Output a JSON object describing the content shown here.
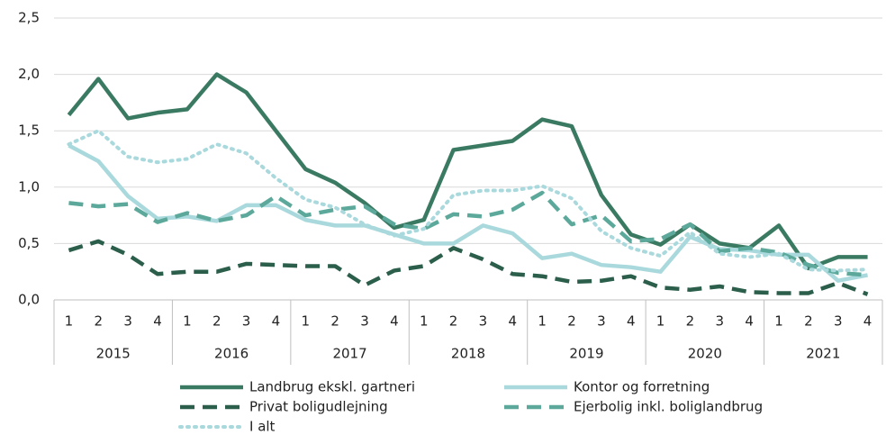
{
  "chart_data": {
    "type": "line",
    "categories": [
      "1",
      "2",
      "3",
      "4",
      "1",
      "2",
      "3",
      "4",
      "1",
      "2",
      "3",
      "4",
      "1",
      "2",
      "3",
      "4",
      "1",
      "2",
      "3",
      "4",
      "1",
      "2",
      "3",
      "4",
      "1",
      "2",
      "3",
      "4"
    ],
    "years": [
      "2015",
      "2016",
      "2017",
      "2018",
      "2019",
      "2020",
      "2021"
    ],
    "ylim": [
      0,
      2.5
    ],
    "yticks": [
      {
        "value": 0,
        "label": "0,0"
      },
      {
        "value": 0.5,
        "label": "0,5"
      },
      {
        "value": 1,
        "label": "1,0"
      },
      {
        "value": 1.5,
        "label": "1,5"
      },
      {
        "value": 2,
        "label": "2,0"
      },
      {
        "value": 2.5,
        "label": "2,5"
      }
    ],
    "grid": true,
    "legend": "bottom",
    "series": [
      {
        "name": "Landbrug ekskl. gartneri",
        "color": "#3b7a62",
        "style": "solid",
        "values": [
          1.64,
          1.96,
          1.61,
          1.66,
          1.69,
          2.0,
          1.84,
          1.5,
          1.16,
          1.04,
          0.86,
          0.64,
          0.71,
          1.33,
          1.37,
          1.41,
          1.6,
          1.54,
          0.93,
          0.58,
          0.49,
          0.67,
          0.5,
          0.46,
          0.66,
          0.28,
          0.38,
          0.38
        ]
      },
      {
        "name": "Kontor og forretning",
        "color": "#a9d9dc",
        "style": "solid",
        "values": [
          1.37,
          1.23,
          0.92,
          0.72,
          0.74,
          0.7,
          0.84,
          0.84,
          0.71,
          0.66,
          0.66,
          0.58,
          0.5,
          0.5,
          0.66,
          0.59,
          0.37,
          0.41,
          0.31,
          0.29,
          0.25,
          0.56,
          0.45,
          0.44,
          0.4,
          0.4,
          0.17,
          0.22
        ]
      },
      {
        "name": "Privat boligudlejning",
        "color": "#2b5e4b",
        "style": "dashed",
        "values": [
          0.44,
          0.52,
          0.4,
          0.23,
          0.25,
          0.25,
          0.32,
          0.31,
          0.3,
          0.3,
          0.13,
          0.26,
          0.3,
          0.46,
          0.36,
          0.23,
          0.21,
          0.16,
          0.17,
          0.21,
          0.11,
          0.09,
          0.12,
          0.07,
          0.06,
          0.06,
          0.15,
          0.05
        ]
      },
      {
        "name": "Ejerbolig inkl. boliglandbrug",
        "color": "#5ca99b",
        "style": "dashed",
        "values": [
          0.86,
          0.83,
          0.85,
          0.69,
          0.77,
          0.7,
          0.75,
          0.92,
          0.75,
          0.8,
          0.83,
          0.67,
          0.63,
          0.76,
          0.74,
          0.8,
          0.95,
          0.67,
          0.75,
          0.52,
          0.54,
          0.67,
          0.43,
          0.46,
          0.42,
          0.31,
          0.24,
          0.22
        ]
      },
      {
        "name": "I alt",
        "color": "#a9d9dc",
        "style": "dotted",
        "values": [
          1.38,
          1.5,
          1.27,
          1.22,
          1.25,
          1.38,
          1.3,
          1.08,
          0.89,
          0.82,
          0.67,
          0.57,
          0.63,
          0.93,
          0.97,
          0.97,
          1.01,
          0.9,
          0.61,
          0.46,
          0.39,
          0.6,
          0.41,
          0.38,
          0.41,
          0.27,
          0.26,
          0.27
        ]
      }
    ]
  }
}
